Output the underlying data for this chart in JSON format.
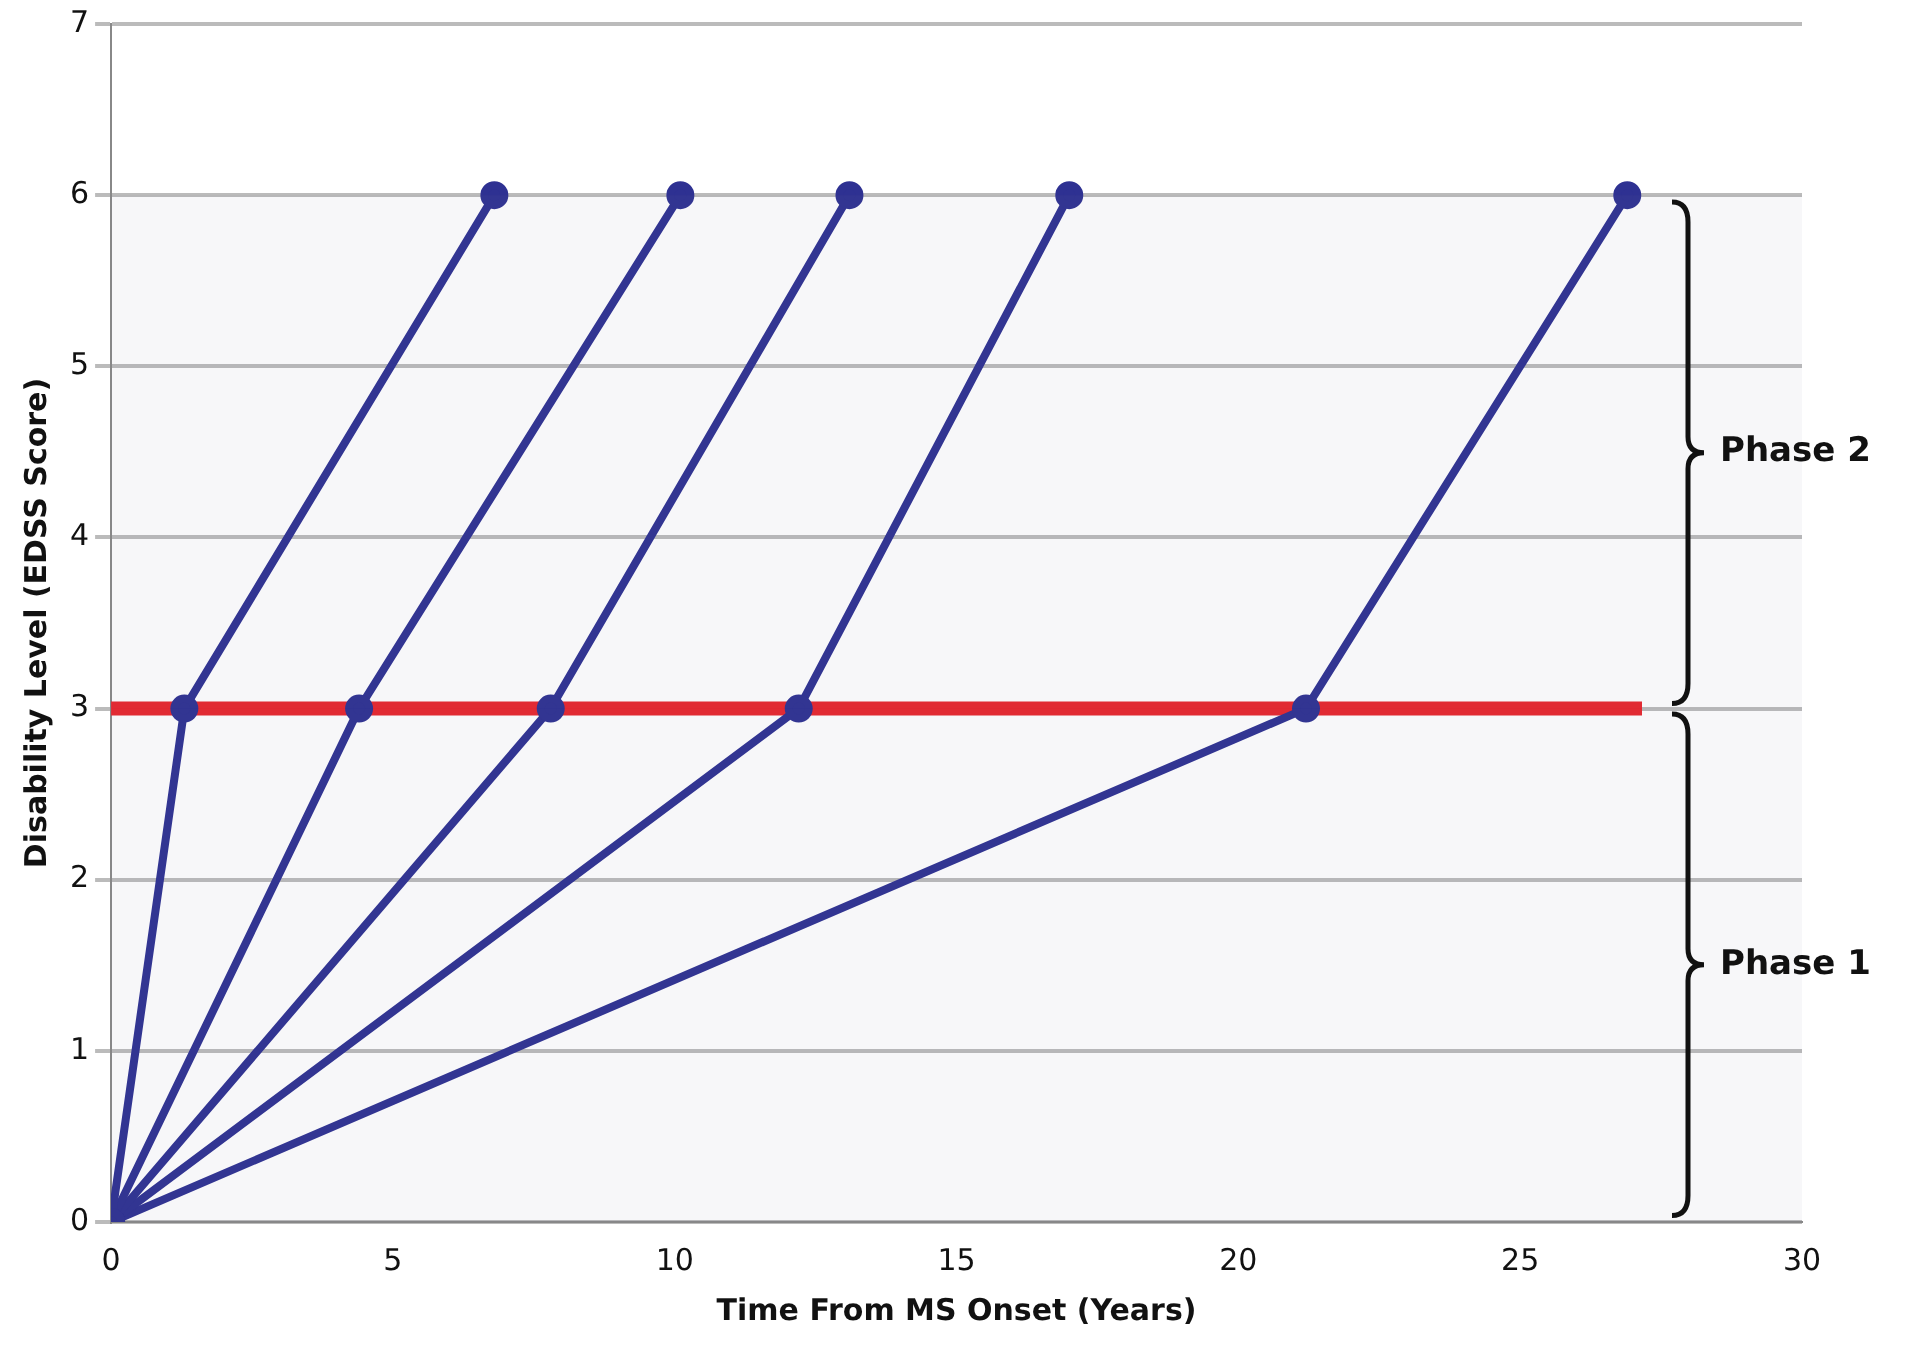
{
  "chart_data": {
    "type": "line",
    "xlabel": "Time From MS Onset (Years)",
    "ylabel": "Disability Level (EDSS Score)",
    "xlim": [
      0,
      30
    ],
    "xticks": [
      0,
      5,
      10,
      15,
      20,
      25,
      30
    ],
    "ylim": [
      0,
      7
    ],
    "yticks": [
      0,
      1,
      2,
      3,
      4,
      5,
      6,
      7
    ],
    "grid": "y",
    "legend": false,
    "marker": "circle",
    "line_style": "solid",
    "series": [
      {
        "color": "#2e3192",
        "x": [
          0,
          1.3,
          6.8
        ],
        "values": [
          0,
          3,
          6
        ]
      },
      {
        "color": "#2e3192",
        "x": [
          0,
          4.4,
          10.1
        ],
        "values": [
          0,
          3,
          6
        ]
      },
      {
        "color": "#2e3192",
        "x": [
          0,
          7.8,
          13.1
        ],
        "values": [
          0,
          3,
          6
        ]
      },
      {
        "color": "#2e3192",
        "x": [
          0,
          12.2,
          17.0
        ],
        "values": [
          0,
          3,
          6
        ]
      },
      {
        "color": "#2e3192",
        "x": [
          0,
          21.2,
          26.9
        ],
        "values": [
          0,
          3,
          6
        ]
      }
    ],
    "ref_lines": [
      {
        "axis": "y",
        "value": 3,
        "color": "#e8262d"
      }
    ],
    "bands": [
      {
        "axis": "y",
        "from": 3,
        "to": 6,
        "label": "Phase 2"
      },
      {
        "axis": "y",
        "from": 0,
        "to": 3,
        "label": "Phase 1"
      }
    ]
  }
}
